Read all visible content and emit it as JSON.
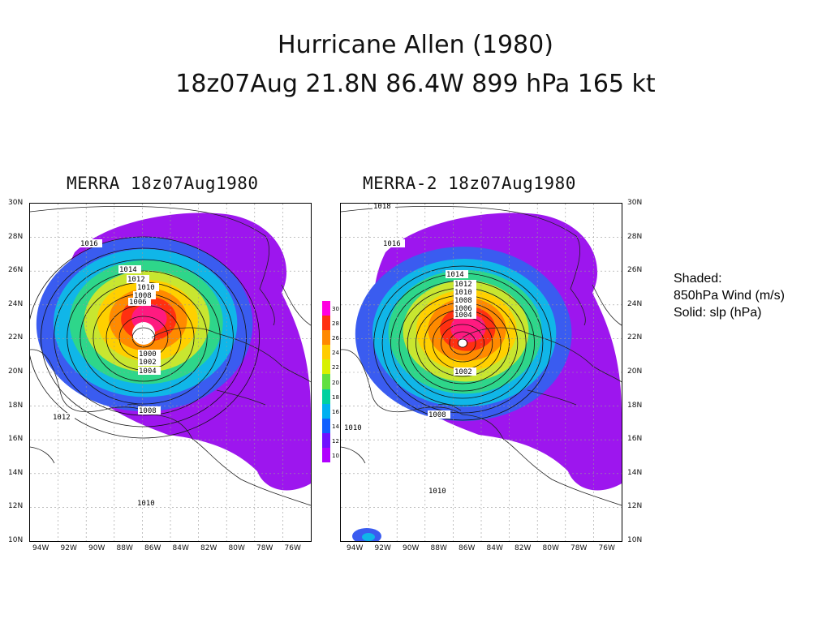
{
  "header": {
    "title_line1": "Hurricane Allen (1980)",
    "title_line2": "18z07Aug 21.8N 86.4W 899 hPa 165 kt"
  },
  "panels": [
    {
      "title": "MERRA 18z07Aug1980",
      "isobar_labels": [
        "1016",
        "1014",
        "1012",
        "1010",
        "1008",
        "1006",
        "1000",
        "1002",
        "1004",
        "1008",
        "1012",
        "1010"
      ]
    },
    {
      "title": "MERRA-2 18z07Aug1980",
      "isobar_labels": [
        "1018",
        "1016",
        "1014",
        "1012",
        "1010",
        "1008",
        "1006",
        "1004",
        "1002",
        "1008",
        "1010",
        "1010"
      ]
    }
  ],
  "axes": {
    "lat_labels": [
      "30N",
      "28N",
      "26N",
      "24N",
      "22N",
      "20N",
      "18N",
      "16N",
      "14N",
      "12N",
      "10N"
    ],
    "lon_labels": [
      "94W",
      "92W",
      "90W",
      "88W",
      "86W",
      "84W",
      "82W",
      "80W",
      "78W",
      "76W"
    ]
  },
  "colorbar": {
    "labels": [
      "30",
      "28",
      "26",
      "24",
      "22",
      "20",
      "18",
      "16",
      "14",
      "12",
      "10"
    ],
    "colors": [
      "#ff00e0",
      "#ff3010",
      "#ff8800",
      "#ffcc00",
      "#d8f000",
      "#60e040",
      "#00d0a0",
      "#00b0f0",
      "#1060ff",
      "#7010ff",
      "#b000ff"
    ]
  },
  "legend": {
    "line1": "Shaded:",
    "line2": "850hPa Wind (m/s)",
    "line3": "Solid: slp (hPa)"
  },
  "map_colors": {
    "ring1": "#9d16ee",
    "ring2": "#3a5cf0",
    "ring3": "#10b6e8",
    "ring4": "#2ed68a",
    "ring5": "#c8e630",
    "ring6": "#ffd000",
    "ring7": "#ff8a00",
    "ring8": "#ff3010",
    "ring9": "#ff1a80"
  }
}
